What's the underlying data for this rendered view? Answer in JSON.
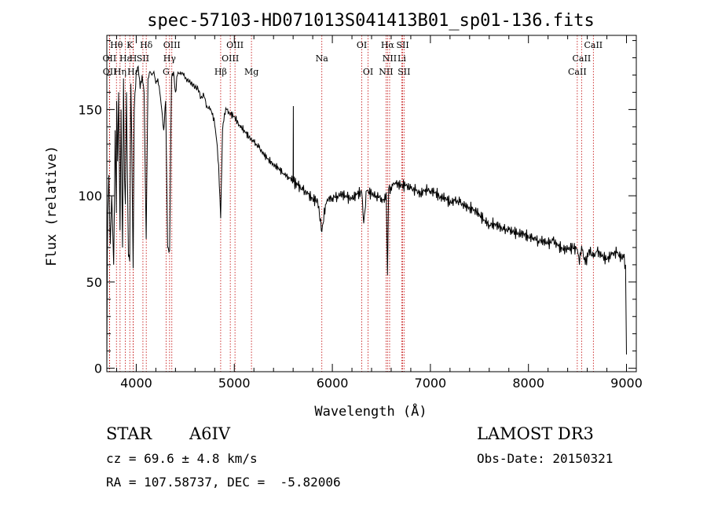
{
  "chart_data": {
    "type": "line",
    "title": "spec-57103-HD071013S041413B01_sp01-136.fits",
    "xlabel": "Wavelength (Å)",
    "ylabel": "Flux (relative)",
    "xlim": [
      3700,
      9100
    ],
    "ylim": [
      -2,
      193
    ],
    "x_ticks": [
      4000,
      5000,
      6000,
      7000,
      8000,
      9000
    ],
    "x_tick_labels": [
      "4000",
      "5000",
      "6000",
      "7000",
      "8000",
      "9000"
    ],
    "y_ticks": [
      0,
      50,
      100,
      150
    ],
    "y_tick_labels": [
      "0",
      "50",
      "100",
      "150"
    ],
    "series": [
      {
        "name": "spectrum",
        "x": [
          3700,
          3705,
          3710,
          3720,
          3735,
          3750,
          3770,
          3785,
          3797,
          3800,
          3810,
          3820,
          3835,
          3845,
          3860,
          3870,
          3880,
          3889,
          3900,
          3920,
          3933,
          3945,
          3955,
          3968,
          3980,
          4000,
          4020,
          4040,
          4060,
          4080,
          4101,
          4120,
          4140,
          4160,
          4180,
          4200,
          4220,
          4240,
          4260,
          4280,
          4300,
          4320,
          4340,
          4360,
          4380,
          4400,
          4420,
          4450,
          4480,
          4510,
          4540,
          4570,
          4600,
          4630,
          4660,
          4690,
          4720,
          4750,
          4780,
          4800,
          4820,
          4840,
          4861,
          4880,
          4900,
          4920,
          4950,
          5000,
          5050,
          5100,
          5150,
          5200,
          5250,
          5300,
          5350,
          5400,
          5450,
          5500,
          5550,
          5600,
          5602,
          5604,
          5650,
          5700,
          5750,
          5800,
          5850,
          5893,
          5930,
          5950,
          6000,
          6050,
          6100,
          6150,
          6200,
          6250,
          6300,
          6320,
          6350,
          6400,
          6450,
          6500,
          6530,
          6550,
          6563,
          6575,
          6590,
          6610,
          6650,
          6700,
          6750,
          6800,
          6850,
          6900,
          6950,
          7000,
          7050,
          7100,
          7150,
          7200,
          7250,
          7300,
          7350,
          7400,
          7450,
          7500,
          7550,
          7600,
          7650,
          7700,
          7750,
          7800,
          7850,
          7900,
          7950,
          8000,
          8050,
          8100,
          8150,
          8200,
          8250,
          8300,
          8350,
          8400,
          8450,
          8498,
          8520,
          8542,
          8580,
          8620,
          8662,
          8700,
          8750,
          8800,
          8850,
          8900,
          8950,
          8970,
          8990,
          9000
        ],
        "values": [
          2,
          65,
          90,
          112,
          72,
          100,
          60,
          138,
          90,
          155,
          120,
          160,
          80,
          150,
          70,
          168,
          110,
          95,
          160,
          65,
          62,
          165,
          130,
          58,
          150,
          172,
          175,
          162,
          170,
          160,
          75,
          168,
          172,
          170,
          172,
          165,
          168,
          160,
          150,
          138,
          155,
          70,
          68,
          168,
          172,
          160,
          170,
          172,
          170,
          168,
          166,
          165,
          163,
          162,
          157,
          158,
          152,
          150,
          148,
          141,
          132,
          118,
          87,
          138,
          148,
          150,
          148,
          146,
          141,
          138,
          134,
          131,
          128,
          124,
          121,
          118,
          116,
          113,
          111,
          109,
          152,
          108,
          106,
          103,
          101,
          98,
          97,
          79,
          95,
          98,
          99,
          100,
          101,
          99,
          98,
          101,
          102,
          84,
          103,
          101,
          100,
          99,
          96,
          102,
          54,
          104,
          101,
          107,
          107,
          106,
          106,
          104,
          103,
          101,
          104,
          103,
          102,
          99,
          99,
          96,
          97,
          96,
          94,
          93,
          92,
          89,
          86,
          83,
          84,
          82,
          80,
          80,
          79,
          78,
          78,
          76,
          76,
          74,
          74,
          72,
          74,
          71,
          69,
          69,
          70,
          69,
          60,
          71,
          60,
          69,
          64,
          68,
          65,
          63,
          66,
          67,
          64,
          64,
          60,
          8
        ]
      }
    ],
    "spectral_lines": [
      {
        "label": "Hθ",
        "wavelength": 3798,
        "row": 0
      },
      {
        "label": "K",
        "wavelength": 3934,
        "row": 0
      },
      {
        "label": "Hδ",
        "wavelength": 4102,
        "row": 0
      },
      {
        "label": "OIII",
        "wavelength": 4363,
        "row": 0
      },
      {
        "label": "OIII",
        "wavelength": 5007,
        "row": 0
      },
      {
        "label": "OI",
        "wavelength": 6300,
        "row": 0
      },
      {
        "label": "Hα",
        "wavelength": 6563,
        "row": 0
      },
      {
        "label": "SII",
        "wavelength": 6717,
        "row": 0
      },
      {
        "label": "CaII",
        "wavelength": 8662,
        "row": 0
      },
      {
        "label": "OII",
        "wavelength": 3727,
        "row": 1
      },
      {
        "label": "Hε",
        "wavelength": 3889,
        "row": 1
      },
      {
        "label": "H",
        "wavelength": 3969,
        "row": 1
      },
      {
        "label": "SII",
        "wavelength": 4068,
        "row": 1
      },
      {
        "label": "Hγ",
        "wavelength": 4340,
        "row": 1
      },
      {
        "label": "OIII",
        "wavelength": 4959,
        "row": 1
      },
      {
        "label": "Na",
        "wavelength": 5893,
        "row": 1
      },
      {
        "label": "NII",
        "wavelength": 6584,
        "row": 1
      },
      {
        "label": "Li",
        "wavelength": 6708,
        "row": 1
      },
      {
        "label": "CaII",
        "wavelength": 8542,
        "row": 1
      },
      {
        "label": "OII",
        "wavelength": 3729,
        "row": 2
      },
      {
        "label": "Hη",
        "wavelength": 3835,
        "row": 2
      },
      {
        "label": "Hε",
        "wavelength": 3970,
        "row": 2
      },
      {
        "label": "G",
        "wavelength": 4304,
        "row": 2
      },
      {
        "label": "Hβ",
        "wavelength": 4861,
        "row": 2
      },
      {
        "label": "Mg",
        "wavelength": 5175,
        "row": 2
      },
      {
        "label": "OI",
        "wavelength": 6364,
        "row": 2
      },
      {
        "label": "NII",
        "wavelength": 6548,
        "row": 2
      },
      {
        "label": "SII",
        "wavelength": 6731,
        "row": 2
      },
      {
        "label": "CaII",
        "wavelength": 8498,
        "row": 2
      }
    ]
  },
  "info": {
    "object_class": "STAR",
    "subclass": "A6IV",
    "survey": "LAMOST DR3",
    "redshift": "cz = 69.6 ± 4.8 km/s",
    "obs_date": "Obs-Date: 20150321",
    "coords": "RA = 107.58737, DEC =  -5.82006"
  }
}
